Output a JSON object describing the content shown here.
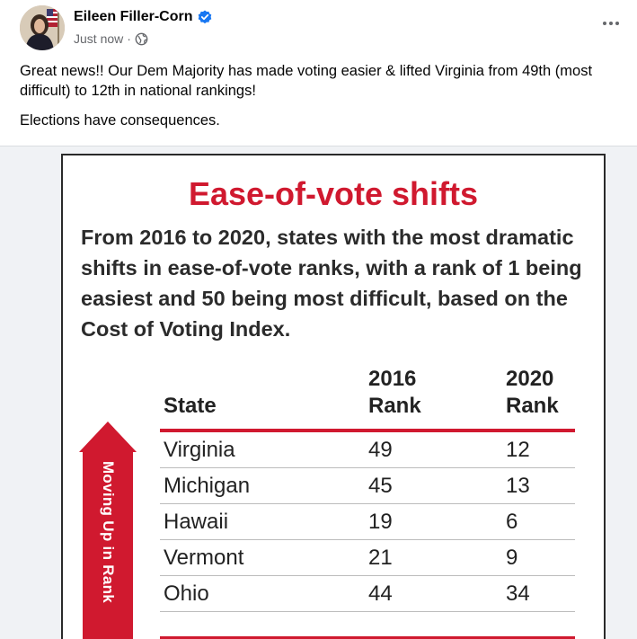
{
  "post": {
    "author": "Eileen Filler-Corn",
    "timestamp": "Just now",
    "separator": "·",
    "privacy_icon": "globe-icon",
    "verified_icon": "verified-badge-icon",
    "more_icon": "more-options-icon",
    "paragraphs": [
      "Great news!! Our Dem Majority has made voting easier & lifted Virginia from 49th (most difficult) to 12th in national rankings!",
      "Elections have consequences."
    ]
  },
  "graphic": {
    "title": "Ease-of-vote shifts",
    "subtitle": "From 2016 to 2020, states with the most dramatic shifts in ease-of-vote ranks, with a rank of 1 being easiest and 50 being most difficult, based on the Cost of Voting Index.",
    "arrow_label": "Moving Up in Rank",
    "table": {
      "headers": {
        "state": "State",
        "y2016_top": "2016",
        "y2016_bottom": "Rank",
        "y2020_top": "2020",
        "y2020_bottom": "Rank"
      },
      "rows": [
        {
          "state": "Virginia",
          "rank2016": "49",
          "rank2020": "12"
        },
        {
          "state": "Michigan",
          "rank2016": "45",
          "rank2020": "13"
        },
        {
          "state": "Hawaii",
          "rank2016": "19",
          "rank2020": "6"
        },
        {
          "state": "Vermont",
          "rank2016": "21",
          "rank2020": "9"
        },
        {
          "state": "Ohio",
          "rank2016": "44",
          "rank2020": "34"
        }
      ]
    }
  },
  "colors": {
    "accent_red": "#d0192f",
    "link_blue": "#1877f2",
    "meta_gray": "#65676b"
  }
}
